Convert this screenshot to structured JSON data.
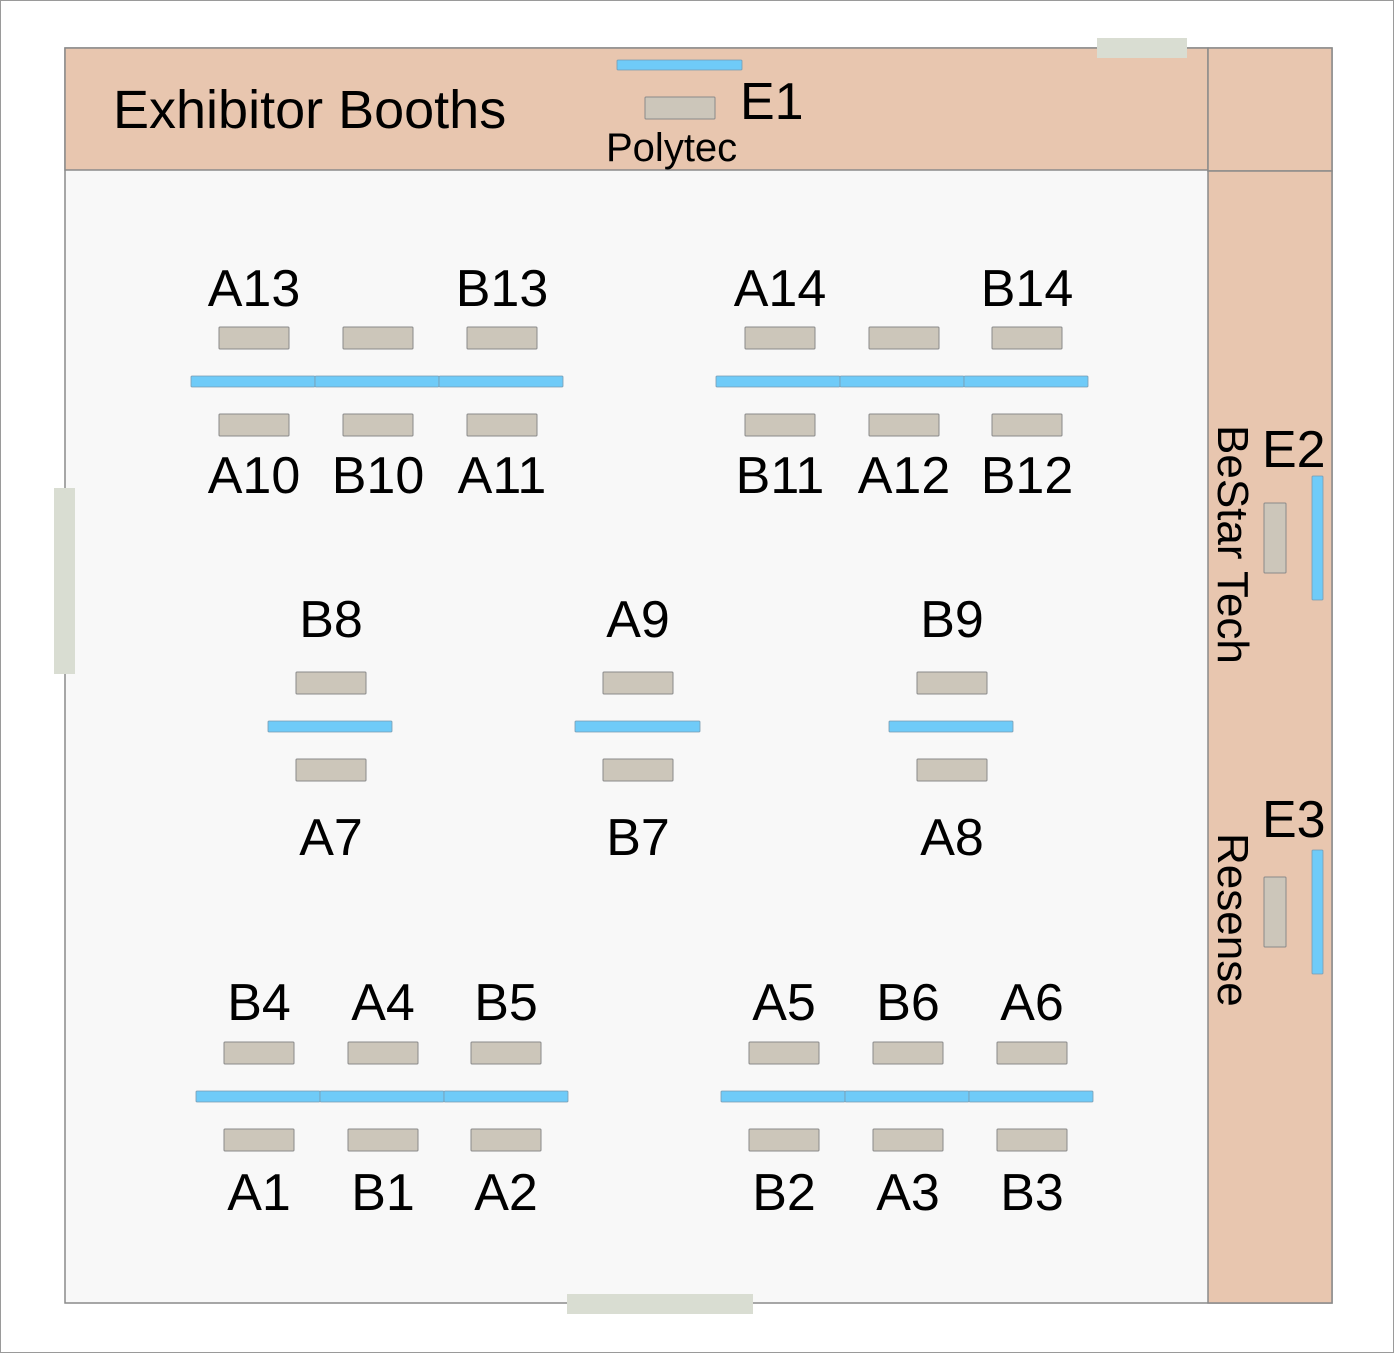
{
  "title": "Exhibitor Booths",
  "colors": {
    "band": "#e8c6af",
    "floor": "#f8f8f8",
    "table": "#ccc6ba",
    "divider": "#6fcbf8",
    "door": "#d9ddd2",
    "outline": "#8a8a8a"
  },
  "exhibitors": {
    "e1": {
      "booth": "E1",
      "company": "Polytec"
    },
    "e2": {
      "booth": "E2",
      "company": "BeStar Tech"
    },
    "e3": {
      "booth": "E3",
      "company": "Resense"
    }
  },
  "clusters": {
    "top_left": {
      "top": [
        "A13",
        "",
        "B13"
      ],
      "bottom": [
        "A10",
        "B10",
        "A11"
      ]
    },
    "top_right": {
      "top": [
        "A14",
        "",
        "B14"
      ],
      "bottom": [
        "B11",
        "A12",
        "B12"
      ]
    },
    "middle_left": {
      "top": [
        "B8"
      ],
      "bottom": [
        "A7"
      ]
    },
    "middle_center": {
      "top": [
        "A9"
      ],
      "bottom": [
        "B7"
      ]
    },
    "middle_right": {
      "top": [
        "B9"
      ],
      "bottom": [
        "A8"
      ]
    },
    "bottom_left": {
      "top": [
        "B4",
        "A4",
        "B5"
      ],
      "bottom": [
        "A1",
        "B1",
        "A2"
      ]
    },
    "bottom_right": {
      "top": [
        "A5",
        "B6",
        "A6"
      ],
      "bottom": [
        "B2",
        "A3",
        "B3"
      ]
    }
  }
}
